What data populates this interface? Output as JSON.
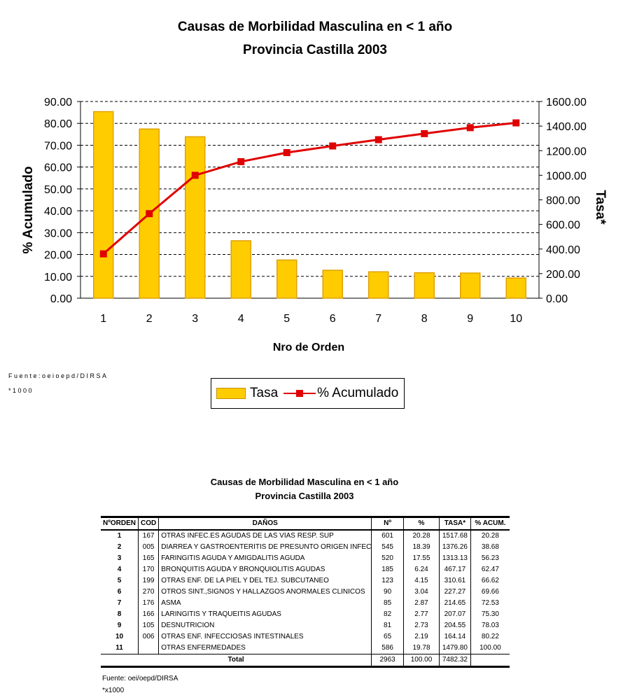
{
  "chart_data": {
    "type": "bar+line",
    "title": "Causas de Morbilidad Masculina en < 1 año",
    "subtitle": "Provincia Castilla 2003",
    "xlabel": "Nro de Orden",
    "ylabel_left": "% Acumulado",
    "ylabel_right": "Tasa*",
    "categories": [
      "1",
      "2",
      "3",
      "4",
      "5",
      "6",
      "7",
      "8",
      "9",
      "10"
    ],
    "yticks_left": [
      "0.00",
      "10.00",
      "20.00",
      "30.00",
      "40.00",
      "50.00",
      "60.00",
      "70.00",
      "80.00",
      "90.00"
    ],
    "yticks_right": [
      "0.00",
      "200.00",
      "400.00",
      "600.00",
      "800.00",
      "1000.00",
      "1200.00",
      "1400.00",
      "1600.00"
    ],
    "ylim_left": [
      0,
      90
    ],
    "ylim_right": [
      0,
      1600
    ],
    "series": [
      {
        "name": "Tasa",
        "type": "bar",
        "axis": "right",
        "color": "#FFCC00",
        "values": [
          1517.68,
          1376.26,
          1313.13,
          467.17,
          310.61,
          227.27,
          214.65,
          207.07,
          204.55,
          164.14
        ]
      },
      {
        "name": "% Acumulado",
        "type": "line",
        "axis": "left",
        "color": "#E00000",
        "values": [
          20.28,
          38.68,
          56.23,
          62.47,
          66.62,
          69.66,
          72.53,
          75.3,
          78.03,
          80.22
        ]
      }
    ],
    "grid": "horizontal dashed",
    "legend": "bottom"
  },
  "source_chart": "Fuente:oeioepd/DIRSA",
  "note_chart": "*1000",
  "table": {
    "title": "Causas de Morbilidad Masculina en < 1 año",
    "subtitle": "Provincia Castilla 2003",
    "headers": [
      "NºORDEN",
      "COD",
      "DAÑOS",
      "Nº",
      "%",
      "TASA*",
      "% ACUM."
    ],
    "rows": [
      [
        "1",
        "167",
        "OTRAS INFEC.ES AGUDAS DE LAS VIAS RESP. SUP",
        "601",
        "20.28",
        "1517.68",
        "20.28"
      ],
      [
        "2",
        "005",
        "DIARREA Y GASTROENTERITIS DE PRESUNTO ORIGEN INFECC",
        "545",
        "18.39",
        "1376.26",
        "38.68"
      ],
      [
        "3",
        "165",
        "FARINGITIS AGUDA Y AMIGDALITIS AGUDA",
        "520",
        "17.55",
        "1313.13",
        "56.23"
      ],
      [
        "4",
        "170",
        "BRONQUITIS AGUDA Y BRONQUIOLITIS AGUDAS",
        "185",
        "6.24",
        "467.17",
        "62.47"
      ],
      [
        "5",
        "199",
        "OTRAS ENF. DE LA PIEL Y DEL TEJ. SUBCUTANEO",
        "123",
        "4.15",
        "310.61",
        "66.62"
      ],
      [
        "6",
        "270",
        "OTROS SINT.,SIGNOS Y HALLAZGOS ANORMALES CLINICOS",
        "90",
        "3.04",
        "227.27",
        "69.66"
      ],
      [
        "7",
        "176",
        "ASMA",
        "85",
        "2.87",
        "214.65",
        "72.53"
      ],
      [
        "8",
        "166",
        "LARINGITIS Y TRAQUEITIS AGUDAS",
        "82",
        "2.77",
        "207.07",
        "75.30"
      ],
      [
        "9",
        "105",
        "DESNUTRICION",
        "81",
        "2.73",
        "204.55",
        "78.03"
      ],
      [
        "10",
        "006",
        "OTRAS ENF. INFECCIOSAS INTESTINALES",
        "65",
        "2.19",
        "164.14",
        "80.22"
      ],
      [
        "11",
        "",
        "OTRAS ENFERMEDADES",
        "586",
        "19.78",
        "1479.80",
        "100.00"
      ]
    ],
    "total": {
      "label": "Total",
      "n": "2963",
      "pct": "100.00",
      "tasa": "7482.32"
    },
    "source": "Fuente: oei/oepd/DIRSA",
    "note": "*x1000"
  }
}
